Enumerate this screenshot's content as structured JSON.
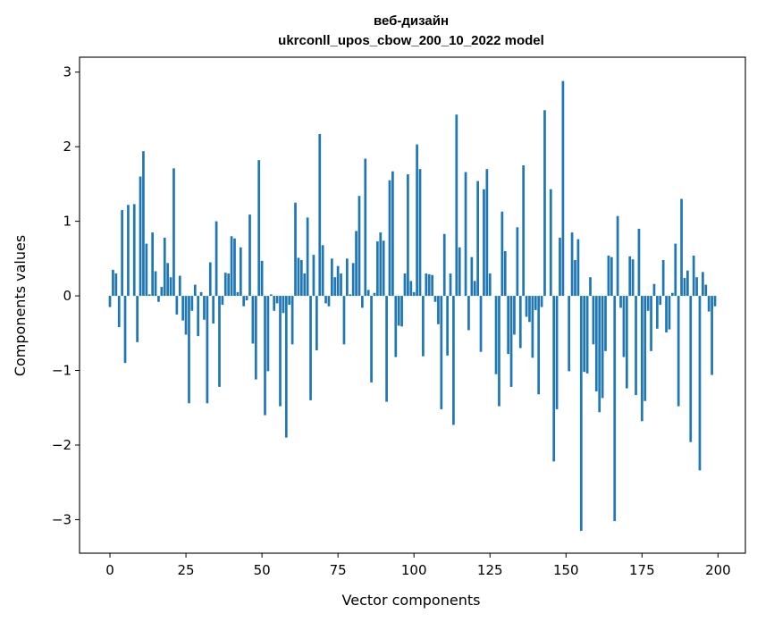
{
  "chart_data": {
    "type": "bar",
    "title": "веб-дизайн",
    "subtitle": "ukrconll_upos_cbow_200_10_2022 model",
    "xlabel": "Vector components",
    "ylabel": "Components values",
    "xlim": [
      -10,
      209
    ],
    "ylim": [
      -3.45,
      3.2
    ],
    "xticks": [
      0,
      25,
      50,
      75,
      100,
      125,
      150,
      175,
      200
    ],
    "yticks": [
      -3,
      -2,
      -1,
      0,
      1,
      2,
      3
    ],
    "xtick_labels": [
      "0",
      "25",
      "50",
      "75",
      "100",
      "125",
      "150",
      "175",
      "200"
    ],
    "ytick_labels": [
      "−3",
      "−2",
      "−1",
      "0",
      "1",
      "2",
      "3"
    ],
    "grid": false,
    "bar_color": "#1f77b4",
    "values": [
      -0.15,
      0.35,
      0.3,
      -0.42,
      1.15,
      -0.9,
      1.22,
      0.0,
      1.23,
      -0.62,
      1.6,
      1.94,
      0.7,
      0.02,
      0.85,
      0.33,
      -0.08,
      0.12,
      0.78,
      0.44,
      0.25,
      1.71,
      -0.25,
      0.27,
      -0.33,
      -0.52,
      -1.44,
      -0.2,
      0.15,
      -0.54,
      0.05,
      -0.32,
      -1.44,
      0.45,
      -0.37,
      1.0,
      -1.22,
      -0.12,
      0.31,
      0.3,
      0.8,
      0.77,
      0.05,
      0.65,
      -0.14,
      -0.06,
      1.09,
      -0.64,
      -1.12,
      1.82,
      0.47,
      -1.6,
      -1.01,
      0.02,
      -0.2,
      -0.1,
      -1.48,
      -0.23,
      -1.9,
      -0.12,
      -0.65,
      1.25,
      0.51,
      0.48,
      0.3,
      1.05,
      -1.4,
      0.55,
      -0.73,
      2.17,
      0.68,
      -0.1,
      -0.14,
      0.5,
      0.25,
      0.4,
      0.3,
      -0.65,
      0.5,
      0.02,
      0.44,
      0.87,
      1.34,
      -0.16,
      1.84,
      0.08,
      -1.16,
      0.04,
      0.73,
      0.85,
      0.74,
      -1.42,
      1.55,
      1.67,
      -0.82,
      -0.4,
      -0.41,
      0.3,
      1.63,
      0.2,
      0.05,
      2.03,
      1.7,
      -0.81,
      0.3,
      0.29,
      0.28,
      -0.08,
      -0.38,
      -1.52,
      0.83,
      -0.8,
      0.3,
      -1.73,
      2.43,
      0.65,
      0.0,
      1.66,
      -0.46,
      0.52,
      0.2,
      1.54,
      -0.75,
      1.43,
      1.7,
      0.3,
      0.0,
      -1.05,
      -1.48,
      1.13,
      0.6,
      -0.78,
      -1.22,
      -0.52,
      0.92,
      -0.7,
      1.75,
      -0.28,
      -0.35,
      -0.83,
      -0.19,
      -1.32,
      -0.15,
      2.49,
      0.0,
      1.43,
      -2.22,
      -1.52,
      0.78,
      2.88,
      0.0,
      -1.01,
      0.85,
      0.48,
      0.76,
      -3.15,
      -1.02,
      -1.04,
      0.25,
      -0.65,
      -1.28,
      -1.56,
      -1.37,
      -0.74,
      0.54,
      0.52,
      -3.02,
      1.07,
      -0.16,
      -0.82,
      -1.24,
      0.53,
      0.49,
      -1.33,
      0.9,
      -1.68,
      -1.41,
      -0.2,
      -0.74,
      0.16,
      -0.44,
      -0.12,
      0.48,
      -0.49,
      -0.45,
      0.04,
      0.7,
      -1.48,
      1.3,
      0.24,
      0.34,
      -1.96,
      0.54,
      0.25,
      -2.34,
      0.32,
      0.15,
      -0.21,
      -1.06,
      -0.14
    ]
  }
}
